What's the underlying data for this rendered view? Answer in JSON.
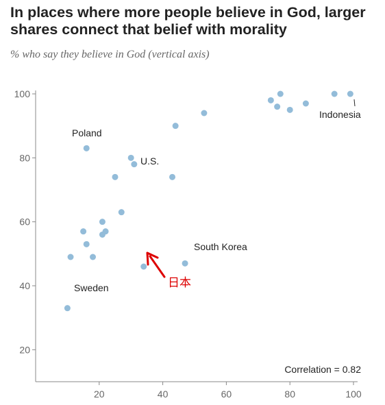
{
  "title": "In places where more people believe in God, larger shares connect that belief with morality",
  "subtitle": "% who say they believe in God (vertical axis)",
  "colors": {
    "point": "#93bcd9",
    "axis": "#888888",
    "text": "#222222",
    "highlight": "#dd0000"
  },
  "chart_data": {
    "type": "scatter",
    "title": "In places where more people believe in God, larger shares connect that belief with morality",
    "subtitle": "% who say they believe in God (vertical axis)",
    "xlim": [
      0,
      100
    ],
    "ylim": [
      10,
      100
    ],
    "xticks": [
      20,
      40,
      60,
      80,
      100
    ],
    "yticks": [
      20,
      40,
      60,
      80,
      100
    ],
    "grid": false,
    "points": [
      {
        "x": 10,
        "y": 33
      },
      {
        "x": 11,
        "y": 49
      },
      {
        "x": 15,
        "y": 57
      },
      {
        "x": 16,
        "y": 53
      },
      {
        "x": 16,
        "y": 83
      },
      {
        "x": 18,
        "y": 49
      },
      {
        "x": 21,
        "y": 60
      },
      {
        "x": 21,
        "y": 56
      },
      {
        "x": 22,
        "y": 57
      },
      {
        "x": 25,
        "y": 74
      },
      {
        "x": 27,
        "y": 63
      },
      {
        "x": 30,
        "y": 80
      },
      {
        "x": 31,
        "y": 78
      },
      {
        "x": 34,
        "y": 46
      },
      {
        "x": 43,
        "y": 74
      },
      {
        "x": 44,
        "y": 90
      },
      {
        "x": 47,
        "y": 47
      },
      {
        "x": 53,
        "y": 94
      },
      {
        "x": 74,
        "y": 98
      },
      {
        "x": 76,
        "y": 96
      },
      {
        "x": 77,
        "y": 100
      },
      {
        "x": 80,
        "y": 95
      },
      {
        "x": 85,
        "y": 97
      },
      {
        "x": 94,
        "y": 100
      },
      {
        "x": 99,
        "y": 100
      }
    ],
    "annotations": [
      {
        "label": "Poland",
        "x": 16,
        "y": 83
      },
      {
        "label": "U.S.",
        "x": 31,
        "y": 78
      },
      {
        "label": "Sweden",
        "x": 10,
        "y": 33
      },
      {
        "label": "South Korea",
        "x": 47,
        "y": 47
      },
      {
        "label": "Indonesia",
        "x": 99,
        "y": 100
      },
      {
        "label": "日本",
        "x": 34,
        "y": 46
      }
    ],
    "correlation_label": "Correlation = 0.82"
  }
}
